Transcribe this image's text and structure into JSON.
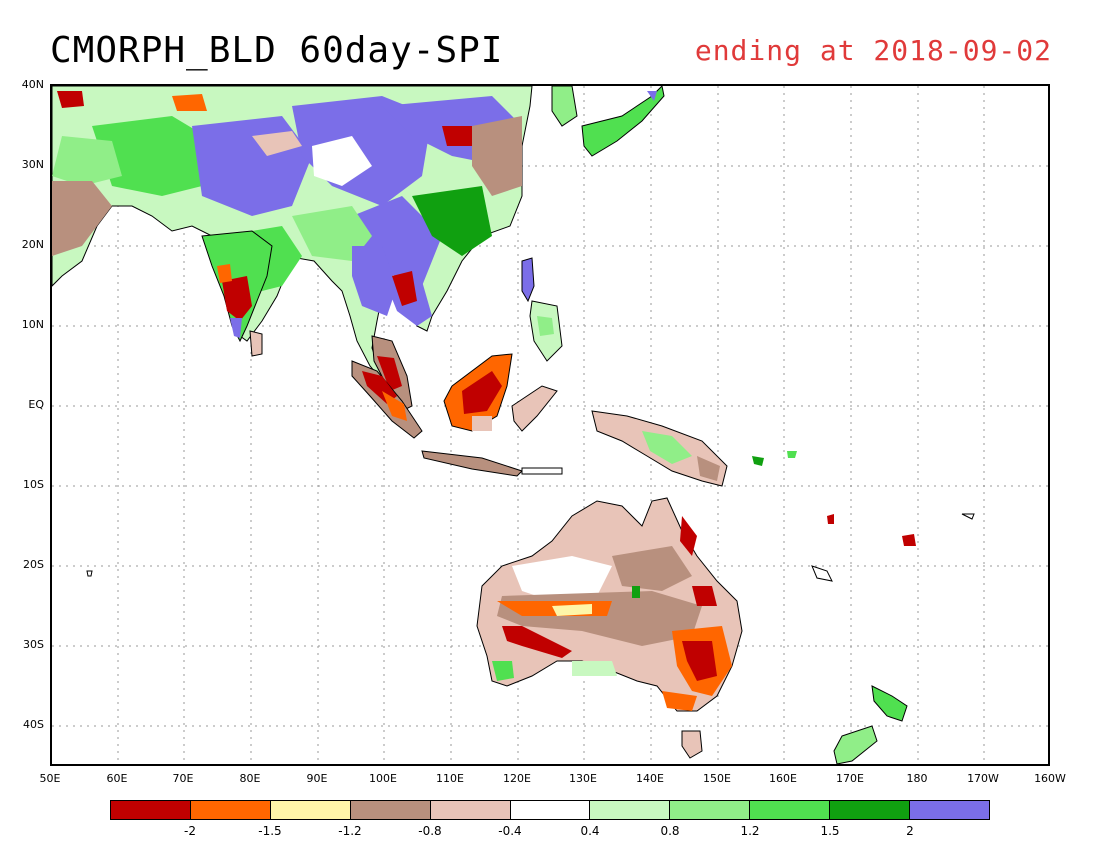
{
  "title": "CMORPH_BLD 60day-SPI",
  "subtitle": "ending at 2018-09-02",
  "lat_labels": [
    "40N",
    "30N",
    "20N",
    "10N",
    "EQ",
    "10S",
    "20S",
    "30S",
    "40S"
  ],
  "lon_labels": [
    "50E",
    "60E",
    "70E",
    "80E",
    "90E",
    "100E",
    "110E",
    "120E",
    "130E",
    "140E",
    "150E",
    "160E",
    "170E",
    "180",
    "170W",
    "160W"
  ],
  "colorbar": {
    "colors": [
      "#c00000",
      "#ff6600",
      "#fff6a8",
      "#b8907e",
      "#e8c4b8",
      "#ffffff",
      "#c8f8c0",
      "#90ee88",
      "#50e050",
      "#10a010",
      "#7b6ee8"
    ],
    "labels": [
      "-2",
      "-1.5",
      "-1.2",
      "-0.8",
      "-0.4",
      "0.4",
      "0.8",
      "1.2",
      "1.5",
      "2"
    ]
  }
}
